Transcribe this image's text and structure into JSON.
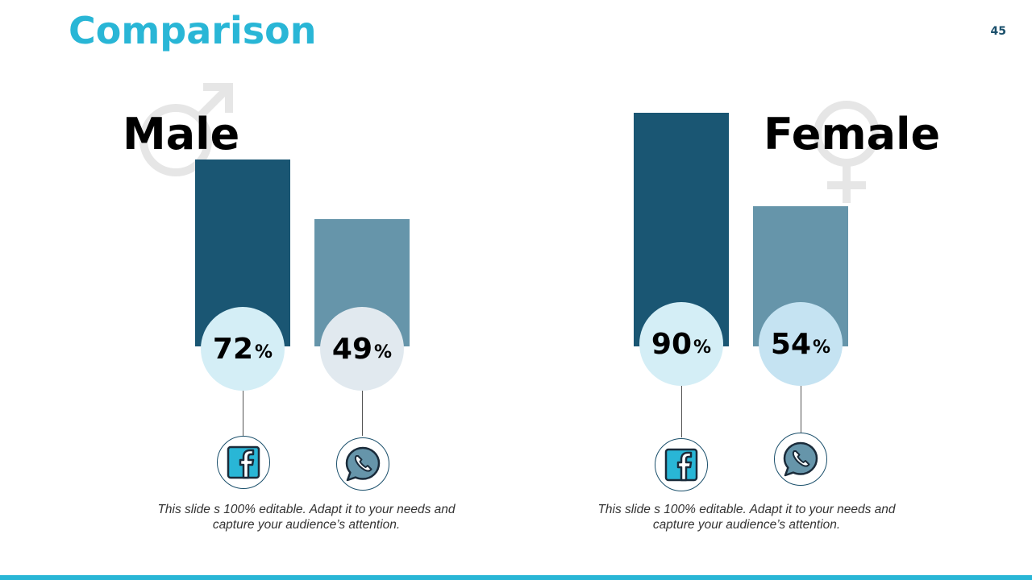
{
  "slide": {
    "title": "Comparison",
    "page_number": "45",
    "colors": {
      "title": "#29B6D6",
      "bar_primary": "#1A5673",
      "bar_secondary": "#6695AA",
      "accent": "#29B6D6",
      "symbol": "#E6E6E6"
    }
  },
  "chart_data": [
    {
      "type": "bar",
      "group": "Male",
      "categories": [
        "facebook",
        "whatsapp"
      ],
      "values": [
        72,
        49
      ],
      "unit": "%",
      "ylim": [
        0,
        100
      ],
      "icons": [
        "facebook-icon",
        "whatsapp-icon"
      ],
      "bubble_colors": [
        "#D4EEF6",
        "#E1E9EF"
      ],
      "caption": {
        "line1": "This slide s 100% editable. Adapt it to your needs and",
        "line2": "capture your audience’s attention."
      }
    },
    {
      "type": "bar",
      "group": "Female",
      "categories": [
        "facebook",
        "whatsapp"
      ],
      "values": [
        90,
        54
      ],
      "unit": "%",
      "ylim": [
        0,
        100
      ],
      "icons": [
        "facebook-icon",
        "whatsapp-icon"
      ],
      "bubble_colors": [
        "#D4EEF6",
        "#C5E3F2"
      ],
      "caption": {
        "line1": "This slide s 100% editable. Adapt it to your needs and",
        "line2": "capture your audience’s attention."
      }
    }
  ]
}
